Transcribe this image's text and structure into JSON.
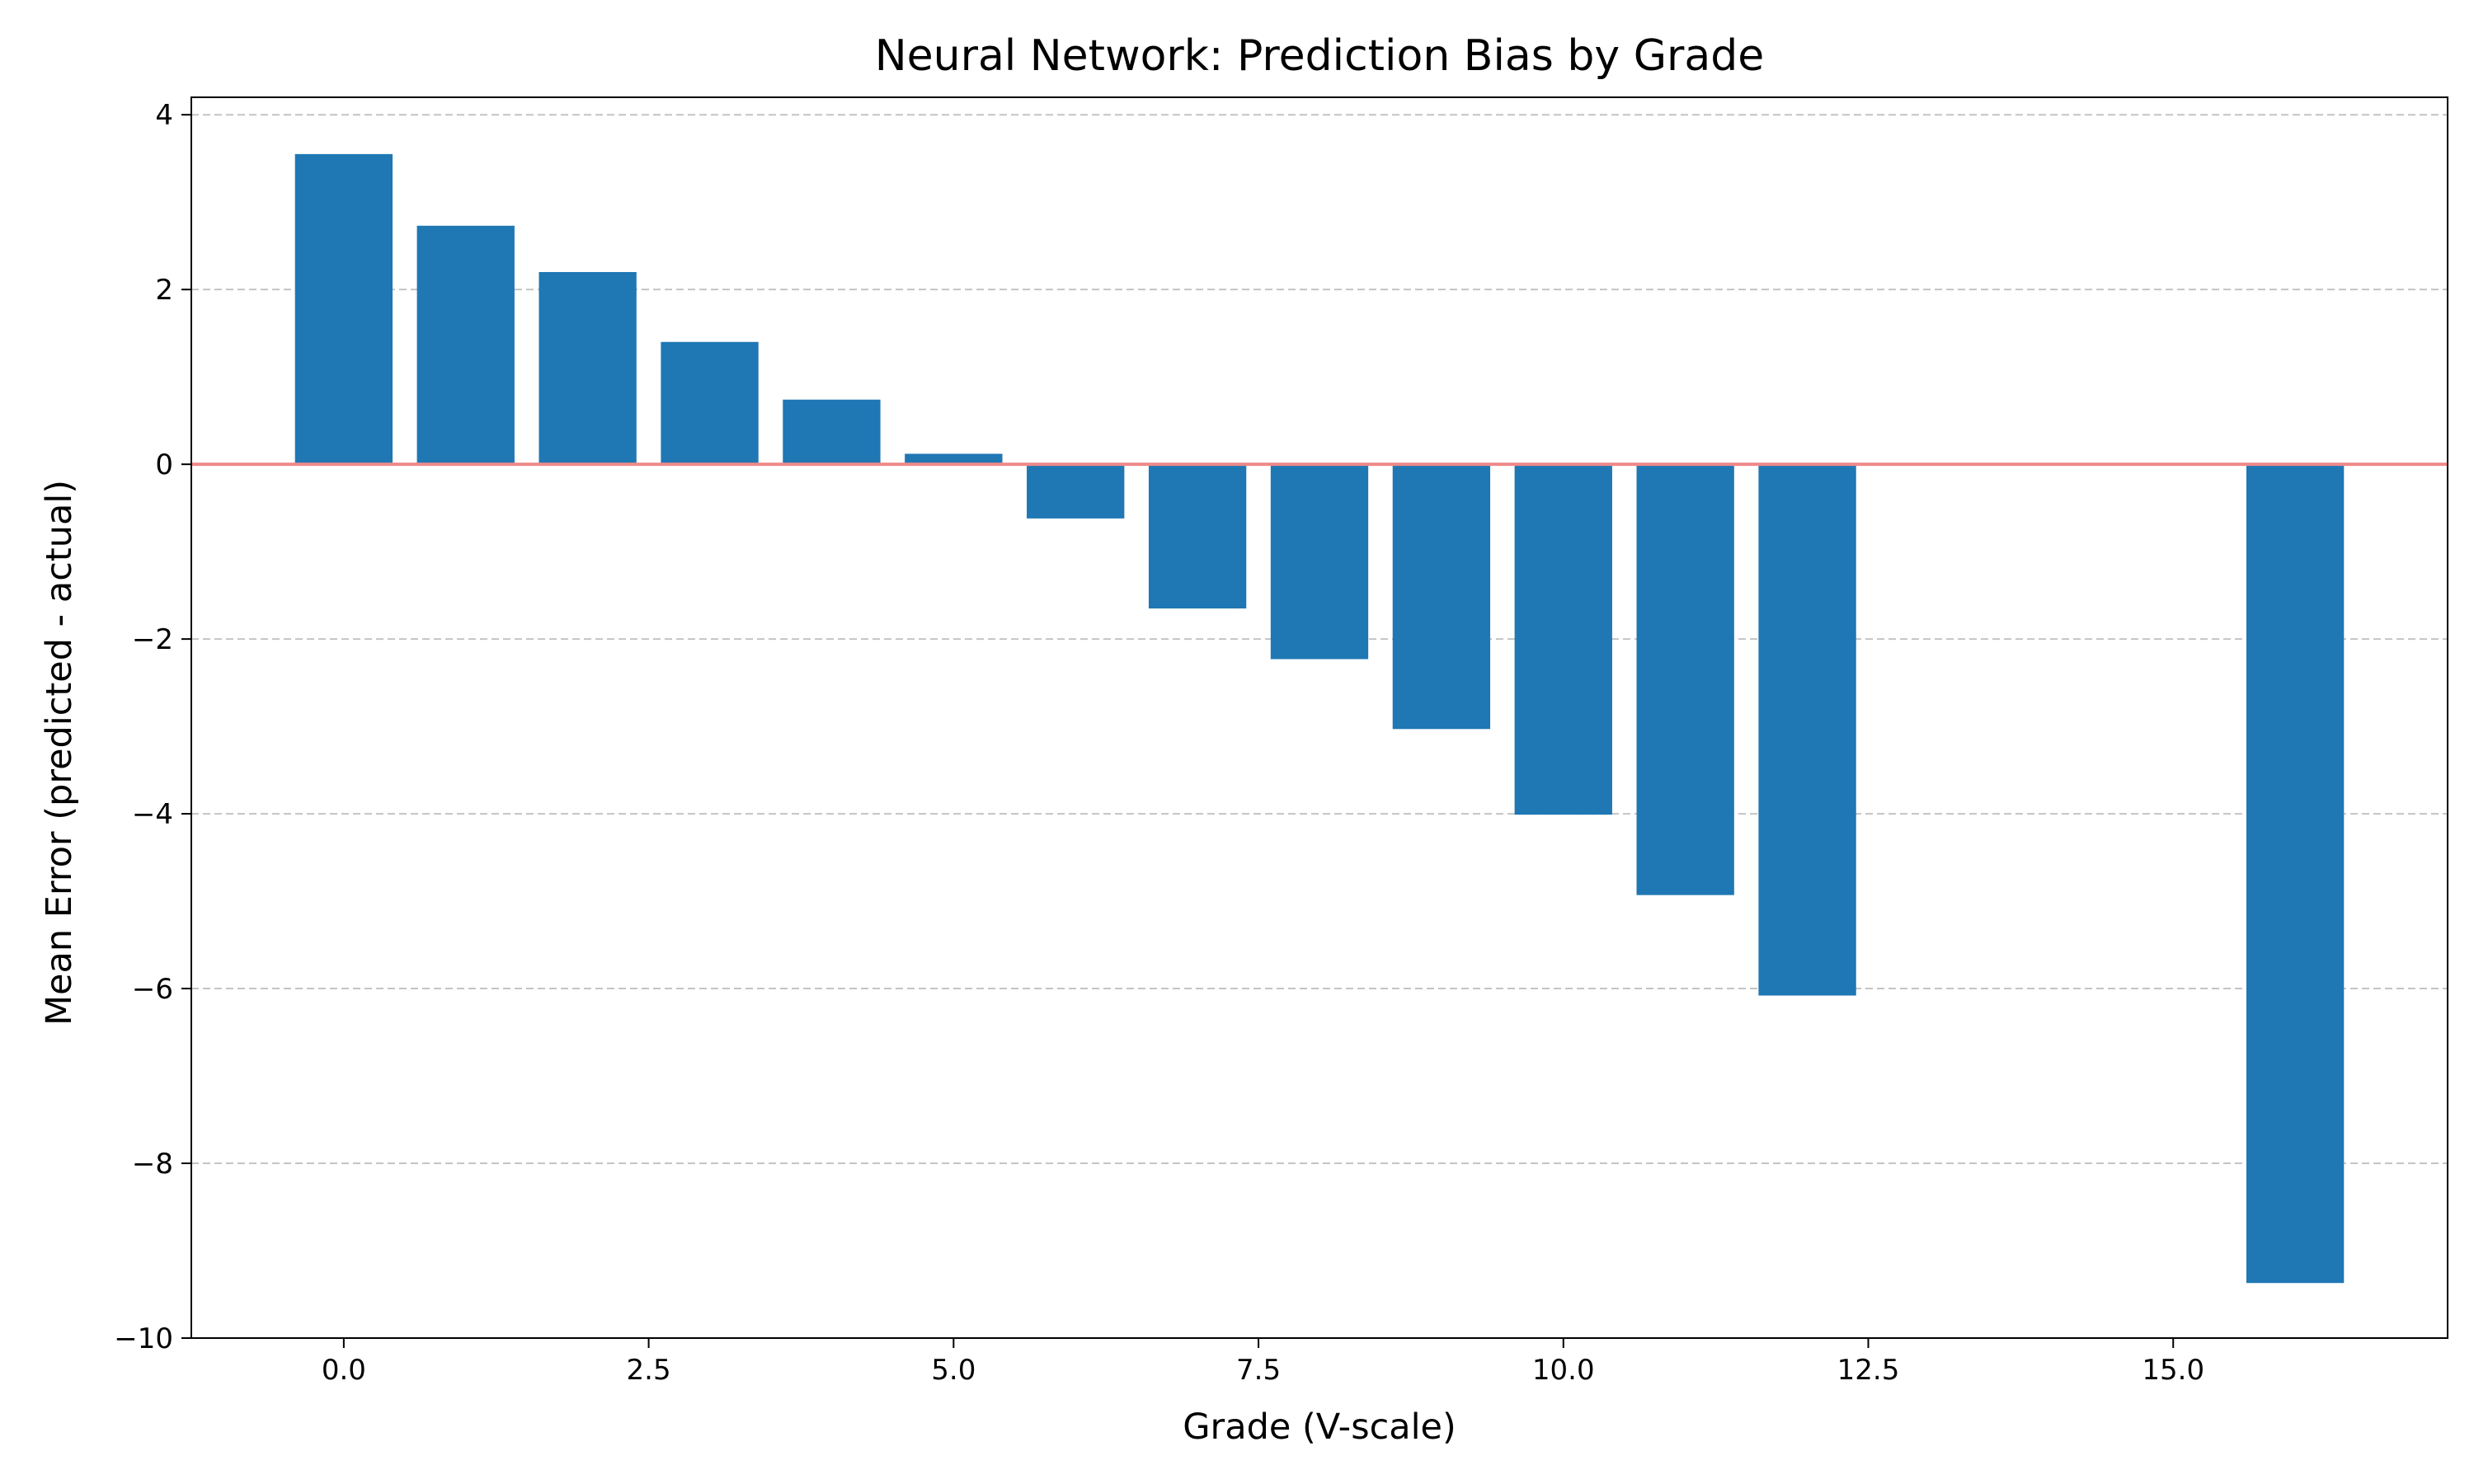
{
  "chart_data": {
    "type": "bar",
    "title": "Neural Network: Prediction Bias by Grade",
    "xlabel": "Grade (V-scale)",
    "ylabel": "Mean Error (predicted - actual)",
    "x": [
      0,
      1,
      2,
      3,
      4,
      5,
      6,
      7,
      8,
      9,
      10,
      11,
      12,
      16
    ],
    "values": [
      3.55,
      2.73,
      2.2,
      1.4,
      0.74,
      0.12,
      -0.62,
      -1.65,
      -2.23,
      -3.03,
      -4.01,
      -4.93,
      -6.08,
      -9.37
    ],
    "bar_width": 0.8,
    "xlim": [
      -1.25,
      17.25
    ],
    "ylim": [
      -10,
      4.2
    ],
    "xticks": [
      0,
      2.5,
      5,
      7.5,
      10,
      12.5,
      15
    ],
    "xtick_labels": [
      "0.0",
      "2.5",
      "5.0",
      "7.5",
      "10.0",
      "12.5",
      "15.0"
    ],
    "yticks": [
      4,
      2,
      0,
      -2,
      -4,
      -6,
      -8,
      -10
    ],
    "ytick_labels": [
      "4",
      "2",
      "0",
      "−2",
      "−4",
      "−6",
      "−8",
      "−10"
    ],
    "grid": "y-dashed",
    "reference_line": {
      "y": 0,
      "color": "#ef8a8a"
    },
    "bar_color": "#1f77b4",
    "grid_color": "#c4c4c4"
  }
}
